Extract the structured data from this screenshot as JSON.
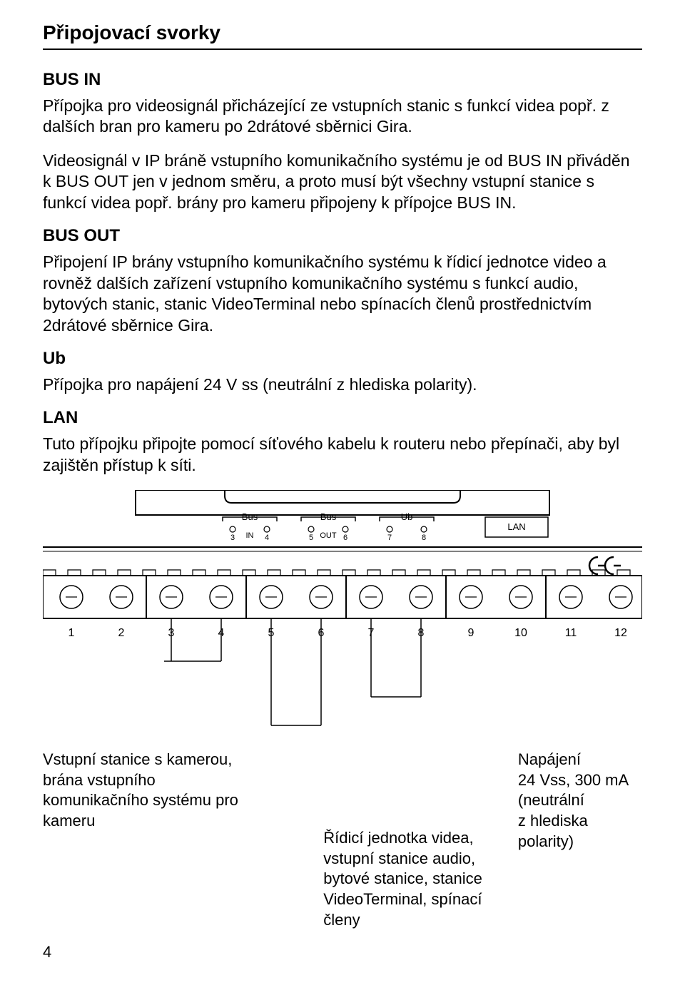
{
  "title": "Připojovací svorky",
  "sections": {
    "busin": {
      "head": "BUS IN",
      "p1": "Přípojka pro videosignál přicházející ze vstupních stanic s funkcí videa popř. z dalších bran pro kameru po 2drátové sběrnici Gira.",
      "p2": "Videosignál v IP bráně vstupního komunikačního systému je od BUS IN přiváděn k BUS OUT jen v jednom směru, a proto musí být všechny vstupní stanice s funkcí videa popř. brány pro kameru připojeny k přípojce BUS IN."
    },
    "busout": {
      "head": "BUS OUT",
      "p1": "Připojení IP brány vstupního komunikačního systému k řídicí jednotce video a rovněž dalších zařízení vstupního komunikačního systému s funkcí audio, bytových stanic, stanic VideoTerminal nebo spínacích členů prostřednictvím 2drátové sběrnice Gira."
    },
    "ub": {
      "head": "Ub",
      "p1": "Přípojka pro napájení 24 V ss (neutrální z hlediska polarity)."
    },
    "lan": {
      "head": "LAN",
      "p1": "Tuto přípojku připojte pomocí síťového kabelu k routeru nebo přepínači, aby byl zajištěn přístup k síti."
    }
  },
  "diagram": {
    "bus_label": "Bus",
    "ub_label": "Ub",
    "lan_label": "LAN",
    "in_label": "IN",
    "out_label": "OUT",
    "top_nums": [
      "3",
      "4",
      "5",
      "6",
      "7",
      "8"
    ],
    "bot_nums": [
      "1",
      "2",
      "3",
      "4",
      "5",
      "6",
      "7",
      "8",
      "9",
      "10",
      "11",
      "12"
    ],
    "ce_text": "CE",
    "stroke": "#000000",
    "bg": "#ffffff",
    "textcolor": "#000000",
    "font_small": 13,
    "font_bot": 16
  },
  "callouts": {
    "left": "Vstupní stanice s kamerou, brána vstupního komunikačního systému pro kameru",
    "mid": "Řídicí jednotka videa, vstupní stanice audio, bytové stanice, stanice VideoTerminal, spínací členy",
    "right": "Napájení\n24 Vss, 300 mA\n(neutrální\nz hlediska\npolarity)"
  },
  "pagenum": "4"
}
